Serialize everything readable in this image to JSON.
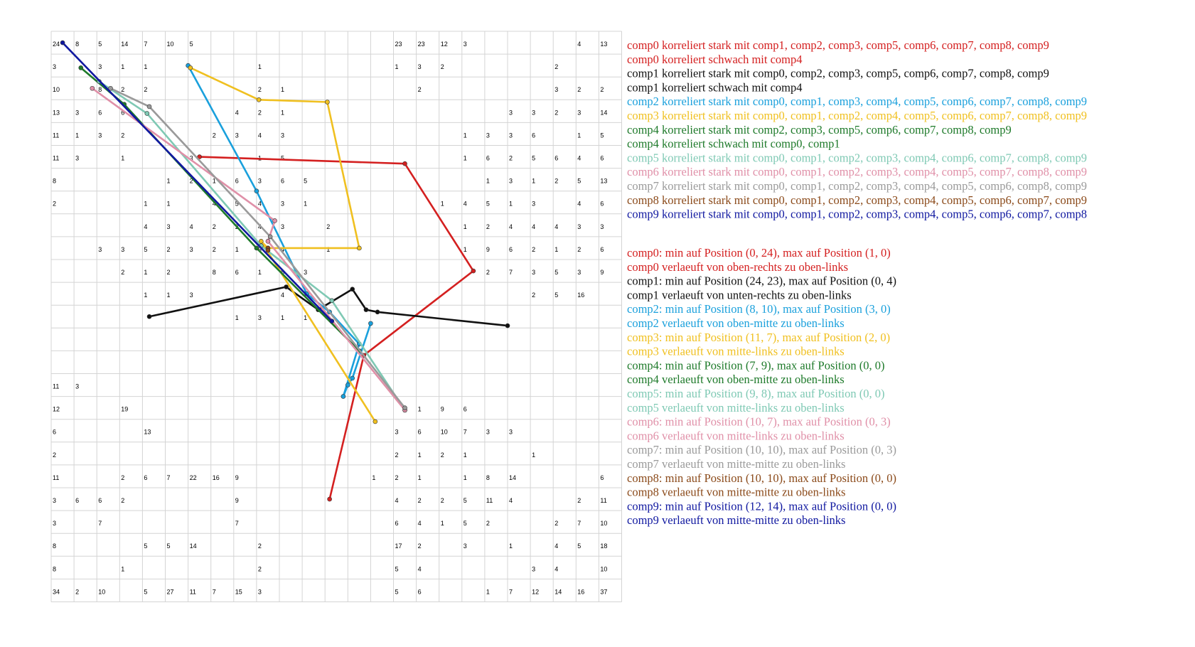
{
  "chart_data": {
    "type": "line",
    "grid": true,
    "grid_cols": 25,
    "grid_rows": 25,
    "cell_numbers": [
      [
        24,
        8,
        5,
        14,
        7,
        10,
        5,
        null,
        null,
        null,
        null,
        null,
        null,
        null,
        null,
        23,
        23,
        12,
        3,
        null,
        null,
        null,
        null,
        4,
        13
      ],
      [
        3,
        null,
        3,
        1,
        1,
        null,
        null,
        null,
        null,
        1,
        null,
        null,
        null,
        null,
        null,
        1,
        3,
        2,
        null,
        null,
        null,
        null,
        2,
        null,
        null
      ],
      [
        10,
        null,
        8,
        2,
        2,
        null,
        null,
        null,
        null,
        2,
        1,
        null,
        null,
        null,
        null,
        null,
        2,
        null,
        null,
        null,
        null,
        null,
        3,
        2,
        2
      ],
      [
        13,
        3,
        6,
        6,
        null,
        null,
        null,
        null,
        4,
        2,
        1,
        null,
        null,
        null,
        null,
        null,
        null,
        null,
        null,
        null,
        3,
        3,
        2,
        3,
        14
      ],
      [
        11,
        1,
        3,
        2,
        null,
        null,
        null,
        2,
        3,
        4,
        3,
        null,
        null,
        null,
        null,
        null,
        null,
        null,
        1,
        3,
        3,
        6,
        null,
        1,
        5
      ],
      [
        11,
        3,
        null,
        1,
        null,
        null,
        3,
        null,
        null,
        1,
        5,
        null,
        null,
        null,
        null,
        null,
        null,
        null,
        1,
        6,
        2,
        5,
        6,
        4,
        6
      ],
      [
        8,
        null,
        null,
        null,
        null,
        1,
        2,
        1,
        6,
        3,
        6,
        5,
        null,
        null,
        null,
        null,
        null,
        null,
        null,
        1,
        3,
        1,
        2,
        5,
        13
      ],
      [
        2,
        null,
        null,
        null,
        1,
        1,
        null,
        4,
        5,
        4,
        3,
        1,
        null,
        null,
        null,
        null,
        null,
        1,
        4,
        5,
        1,
        3,
        null,
        4,
        6
      ],
      [
        null,
        null,
        null,
        null,
        4,
        3,
        4,
        2,
        2,
        4,
        3,
        null,
        2,
        null,
        null,
        null,
        null,
        null,
        1,
        2,
        4,
        4,
        4,
        3,
        3
      ],
      [
        null,
        null,
        3,
        3,
        5,
        2,
        3,
        2,
        1,
        6,
        4,
        null,
        1,
        null,
        null,
        null,
        null,
        null,
        1,
        9,
        6,
        2,
        1,
        2,
        6
      ],
      [
        null,
        null,
        null,
        2,
        1,
        2,
        null,
        8,
        6,
        1,
        5,
        3,
        null,
        null,
        null,
        null,
        null,
        null,
        null,
        2,
        7,
        3,
        5,
        3,
        9
      ],
      [
        null,
        null,
        null,
        null,
        1,
        1,
        3,
        null,
        null,
        null,
        4,
        null,
        null,
        null,
        null,
        null,
        null,
        null,
        null,
        null,
        null,
        2,
        5,
        16,
        null
      ],
      [
        null,
        null,
        null,
        null,
        null,
        null,
        null,
        null,
        1,
        3,
        1,
        1,
        null,
        null,
        null,
        null,
        null,
        null,
        null,
        null,
        null,
        null,
        null,
        null,
        null
      ],
      [
        null,
        null,
        null,
        null,
        null,
        null,
        null,
        null,
        null,
        null,
        null,
        null,
        null,
        null,
        null,
        null,
        null,
        null,
        null,
        null,
        null,
        null,
        null,
        null,
        null
      ],
      [
        null,
        null,
        null,
        null,
        null,
        null,
        null,
        null,
        null,
        null,
        null,
        null,
        null,
        null,
        null,
        null,
        null,
        null,
        null,
        null,
        null,
        null,
        null,
        null,
        null
      ],
      [
        11,
        3,
        null,
        null,
        null,
        null,
        null,
        null,
        null,
        null,
        null,
        null,
        null,
        null,
        null,
        null,
        null,
        null,
        null,
        null,
        null,
        null,
        null,
        null,
        null
      ],
      [
        12,
        null,
        null,
        19,
        null,
        null,
        null,
        null,
        null,
        null,
        null,
        null,
        null,
        null,
        null,
        null,
        1,
        9,
        6,
        null,
        null,
        null,
        null,
        null,
        null
      ],
      [
        6,
        null,
        null,
        null,
        13,
        null,
        null,
        null,
        null,
        null,
        null,
        null,
        null,
        null,
        null,
        3,
        6,
        10,
        7,
        3,
        3,
        null,
        null,
        null,
        null
      ],
      [
        2,
        null,
        null,
        null,
        null,
        null,
        null,
        null,
        null,
        null,
        null,
        null,
        null,
        null,
        null,
        2,
        1,
        2,
        1,
        null,
        null,
        1,
        null,
        null,
        null
      ],
      [
        11,
        null,
        null,
        2,
        6,
        7,
        22,
        16,
        9,
        null,
        null,
        null,
        null,
        null,
        1,
        2,
        1,
        null,
        1,
        8,
        14,
        null,
        null,
        null,
        6
      ],
      [
        3,
        6,
        6,
        2,
        null,
        null,
        null,
        null,
        9,
        null,
        null,
        null,
        null,
        null,
        null,
        4,
        2,
        2,
        5,
        11,
        4,
        null,
        null,
        2,
        11
      ],
      [
        3,
        null,
        7,
        null,
        null,
        null,
        null,
        null,
        7,
        null,
        null,
        null,
        null,
        null,
        null,
        6,
        4,
        1,
        5,
        2,
        null,
        null,
        2,
        7,
        10
      ],
      [
        8,
        null,
        null,
        null,
        5,
        5,
        14,
        null,
        null,
        2,
        null,
        null,
        null,
        null,
        null,
        17,
        2,
        null,
        3,
        null,
        1,
        null,
        4,
        5,
        18
      ],
      [
        8,
        null,
        null,
        1,
        null,
        null,
        null,
        null,
        null,
        2,
        null,
        null,
        null,
        null,
        null,
        5,
        4,
        null,
        null,
        null,
        null,
        3,
        4,
        null,
        10
      ],
      [
        34,
        2,
        10,
        null,
        5,
        27,
        11,
        7,
        15,
        3,
        null,
        null,
        null,
        null,
        null,
        5,
        6,
        null,
        null,
        1,
        7,
        12,
        14,
        16,
        37
      ]
    ],
    "series": [
      {
        "name": "comp0",
        "color": "#d42020",
        "points": [
          [
            6.5,
            5.5
          ],
          [
            15.5,
            5.8
          ],
          [
            18.5,
            10.5
          ],
          [
            13.7,
            14.2
          ],
          [
            12.2,
            20.5
          ]
        ]
      },
      {
        "name": "comp1",
        "color": "#111111",
        "points": [
          [
            4.3,
            12.5
          ],
          [
            10.3,
            11.2
          ],
          [
            11.7,
            12.2
          ],
          [
            13.2,
            11.3
          ],
          [
            13.8,
            12.2
          ],
          [
            14.3,
            12.3
          ],
          [
            20.0,
            12.9
          ]
        ]
      },
      {
        "name": "comp2",
        "color": "#1aa0dc",
        "points": [
          [
            6.0,
            1.5
          ],
          [
            9.0,
            7.0
          ],
          [
            11.2,
            11.5
          ],
          [
            12.2,
            12.3
          ],
          [
            13.5,
            13.7
          ],
          [
            12.8,
            16.0
          ],
          [
            13.0,
            15.5
          ],
          [
            13.2,
            15.2
          ],
          [
            14.0,
            12.8
          ]
        ]
      },
      {
        "name": "comp3",
        "color": "#f0c020",
        "points": [
          [
            6.1,
            1.6
          ],
          [
            9.1,
            3.0
          ],
          [
            12.1,
            3.1
          ],
          [
            13.5,
            9.5
          ],
          [
            9.5,
            9.5
          ],
          [
            9.2,
            9.2
          ],
          [
            14.2,
            17.1
          ]
        ]
      },
      {
        "name": "comp4",
        "color": "#1e7a2a",
        "points": [
          [
            1.3,
            1.6
          ],
          [
            3.2,
            3.2
          ],
          [
            9.0,
            9.5
          ],
          [
            13.5,
            14.0
          ]
        ]
      },
      {
        "name": "comp5",
        "color": "#7fc9b4",
        "points": [
          [
            2.1,
            2.2
          ],
          [
            4.2,
            3.6
          ],
          [
            9.2,
            9.4
          ],
          [
            12.3,
            11.8
          ],
          [
            15.5,
            16.6
          ]
        ]
      },
      {
        "name": "comp6",
        "color": "#e090a8",
        "points": [
          [
            1.8,
            2.5
          ],
          [
            9.8,
            8.3
          ],
          [
            9.5,
            9.2
          ],
          [
            15.5,
            16.6
          ]
        ]
      },
      {
        "name": "comp7",
        "color": "#9a9a9a",
        "points": [
          [
            2.6,
            2.5
          ],
          [
            4.3,
            3.3
          ],
          [
            9.6,
            9.0
          ],
          [
            15.5,
            16.5
          ]
        ]
      },
      {
        "name": "comp8",
        "color": "#8b4a1a",
        "points": [
          [
            9.5,
            9.5
          ],
          [
            9.5,
            9.6
          ]
        ]
      },
      {
        "name": "comp9",
        "color": "#1018a0",
        "points": [
          [
            0.5,
            0.5
          ],
          [
            12.3,
            12.7
          ]
        ]
      }
    ],
    "annotations_top": [
      {
        "text": "comp0 korreliert stark mit comp1, comp2, comp3, comp5, comp6, comp7, comp8, comp9",
        "color": "#d42020"
      },
      {
        "text": "comp0 korreliert schwach mit comp4",
        "color": "#d42020"
      },
      {
        "text": "comp1 korreliert stark mit comp0, comp2, comp3, comp5, comp6, comp7, comp8, comp9",
        "color": "#111111"
      },
      {
        "text": "comp1 korreliert schwach mit comp4",
        "color": "#111111"
      },
      {
        "text": "comp2 korreliert stark mit comp0, comp1, comp3, comp4, comp5, comp6, comp7, comp8, comp9",
        "color": "#1aa0dc"
      },
      {
        "text": "comp3 korreliert stark mit comp0, comp1, comp2, comp4, comp5, comp6, comp7, comp8, comp9",
        "color": "#f0c020"
      },
      {
        "text": "comp4 korreliert stark mit comp2, comp3, comp5, comp6, comp7, comp8, comp9",
        "color": "#1e7a2a"
      },
      {
        "text": "comp4 korreliert schwach mit comp0, comp1",
        "color": "#1e7a2a"
      },
      {
        "text": "comp5 korreliert stark mit comp0, comp1, comp2, comp3, comp4, comp6, comp7, comp8, comp9",
        "color": "#7fc9b4"
      },
      {
        "text": "comp6 korreliert stark mit comp0, comp1, comp2, comp3, comp4, comp5, comp7, comp8, comp9",
        "color": "#e090a8"
      },
      {
        "text": "comp7 korreliert stark mit comp0, comp1, comp2, comp3, comp4, comp5, comp6, comp8, comp9",
        "color": "#9a9a9a"
      },
      {
        "text": "comp8 korreliert stark mit comp0, comp1, comp2, comp3, comp4, comp5, comp6, comp7, comp9",
        "color": "#8b4a1a"
      },
      {
        "text": "comp9 korreliert stark mit comp0, comp1, comp2, comp3, comp4, comp5, comp6, comp7, comp8",
        "color": "#1018a0"
      }
    ],
    "annotations_bottom": [
      {
        "text": "comp0: min auf Position (0, 24), max auf Position (1, 0)",
        "color": "#d42020"
      },
      {
        "text": "comp0 verlaeuft von oben-rechts zu oben-links",
        "color": "#d42020"
      },
      {
        "text": "comp1: min auf Position (24, 23), max auf Position (0, 4)",
        "color": "#111111"
      },
      {
        "text": "comp1 verlaeuft von unten-rechts zu oben-links",
        "color": "#111111"
      },
      {
        "text": "comp2: min auf Position (8, 10), max auf Position (3, 0)",
        "color": "#1aa0dc"
      },
      {
        "text": "comp2 verlaeuft von oben-mitte zu oben-links",
        "color": "#1aa0dc"
      },
      {
        "text": "comp3: min auf Position (11, 7), max auf Position (2, 0)",
        "color": "#f0c020"
      },
      {
        "text": "comp3 verlaeuft von mitte-links zu oben-links",
        "color": "#f0c020"
      },
      {
        "text": "comp4: min auf Position (7, 9), max auf Position (0, 0)",
        "color": "#1e7a2a"
      },
      {
        "text": "comp4 verlaeuft von oben-mitte zu oben-links",
        "color": "#1e7a2a"
      },
      {
        "text": "comp5: min auf Position (9, 8), max auf Position (0, 0)",
        "color": "#7fc9b4"
      },
      {
        "text": "comp5 verlaeuft von mitte-links zu oben-links",
        "color": "#7fc9b4"
      },
      {
        "text": "comp6: min auf Position (10, 7), max auf Position (0, 3)",
        "color": "#e090a8"
      },
      {
        "text": "comp6 verlaeuft von mitte-links zu oben-links",
        "color": "#e090a8"
      },
      {
        "text": "comp7: min auf Position (10, 10), max auf Position (0, 3)",
        "color": "#9a9a9a"
      },
      {
        "text": "comp7 verlaeuft von mitte-mitte zu oben-links",
        "color": "#9a9a9a"
      },
      {
        "text": "comp8: min auf Position (10, 10), max auf Position (0, 0)",
        "color": "#8b4a1a"
      },
      {
        "text": "comp8 verlaeuft von mitte-mitte zu oben-links",
        "color": "#8b4a1a"
      },
      {
        "text": "comp9: min auf Position (12, 14), max auf Position (0, 0)",
        "color": "#1018a0"
      },
      {
        "text": "comp9 verlaeuft von mitte-mitte zu oben-links",
        "color": "#1018a0"
      }
    ]
  }
}
